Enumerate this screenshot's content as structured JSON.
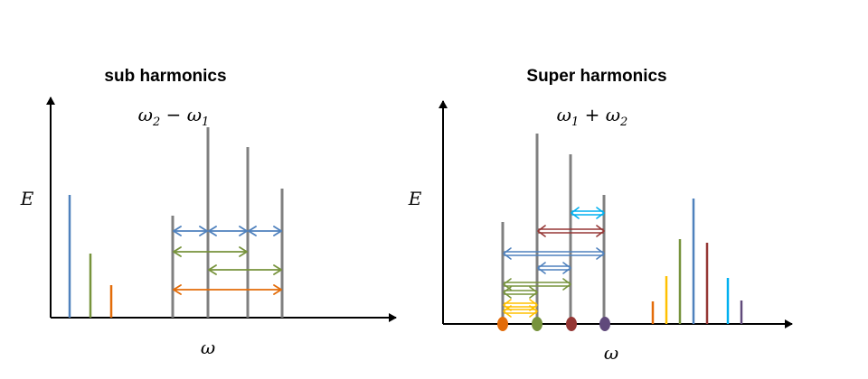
{
  "colors": {
    "axis": "#000000",
    "gray": "#808080",
    "blue": "#4f81bd",
    "green": "#77933c",
    "orange": "#e36c09",
    "yellow": "#ffc000",
    "darkred": "#953735",
    "cyan": "#00b0f0",
    "purple": "#604a7b"
  },
  "left_panel": {
    "title": "sub harmonics",
    "formula": {
      "a": "ω",
      "a_sub": "2",
      "op": " − ",
      "b": "ω",
      "b_sub": "1"
    },
    "y_label": "E",
    "x_label": "ω"
  },
  "right_panel": {
    "title": "Super harmonics",
    "formula": {
      "a": "ω",
      "a_sub": "1",
      "op": " + ",
      "b": "ω",
      "b_sub": "2"
    },
    "y_label": "E",
    "x_label": "ω"
  }
}
